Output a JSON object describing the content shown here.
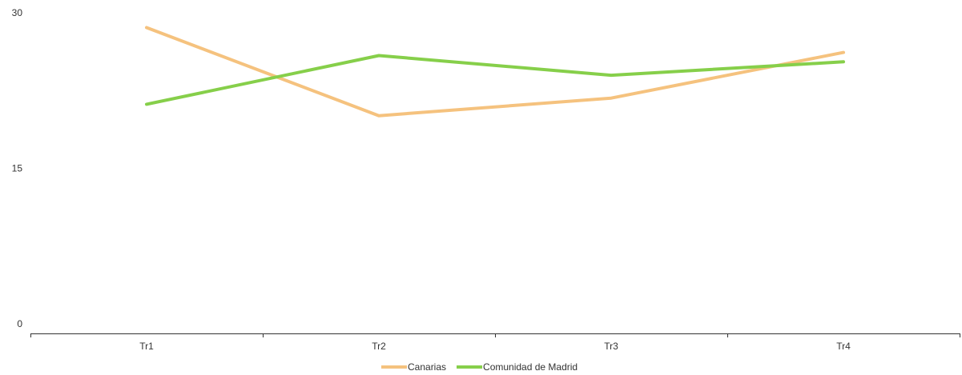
{
  "chart_data": {
    "type": "line",
    "categories": [
      "Tr1",
      "Tr2",
      "Tr3",
      "Tr4"
    ],
    "series": [
      {
        "name": "Canarias",
        "color": "#f5c27e",
        "values": [
          29.5,
          21.0,
          22.7,
          27.1
        ]
      },
      {
        "name": "Comunidad de Madrid",
        "color": "#86cf4a",
        "values": [
          22.1,
          26.8,
          24.9,
          26.2
        ]
      }
    ],
    "ylim": [
      0,
      30
    ],
    "yticks": [
      "0",
      "15",
      "30"
    ],
    "grid": false,
    "legend_position": "bottom-center"
  }
}
